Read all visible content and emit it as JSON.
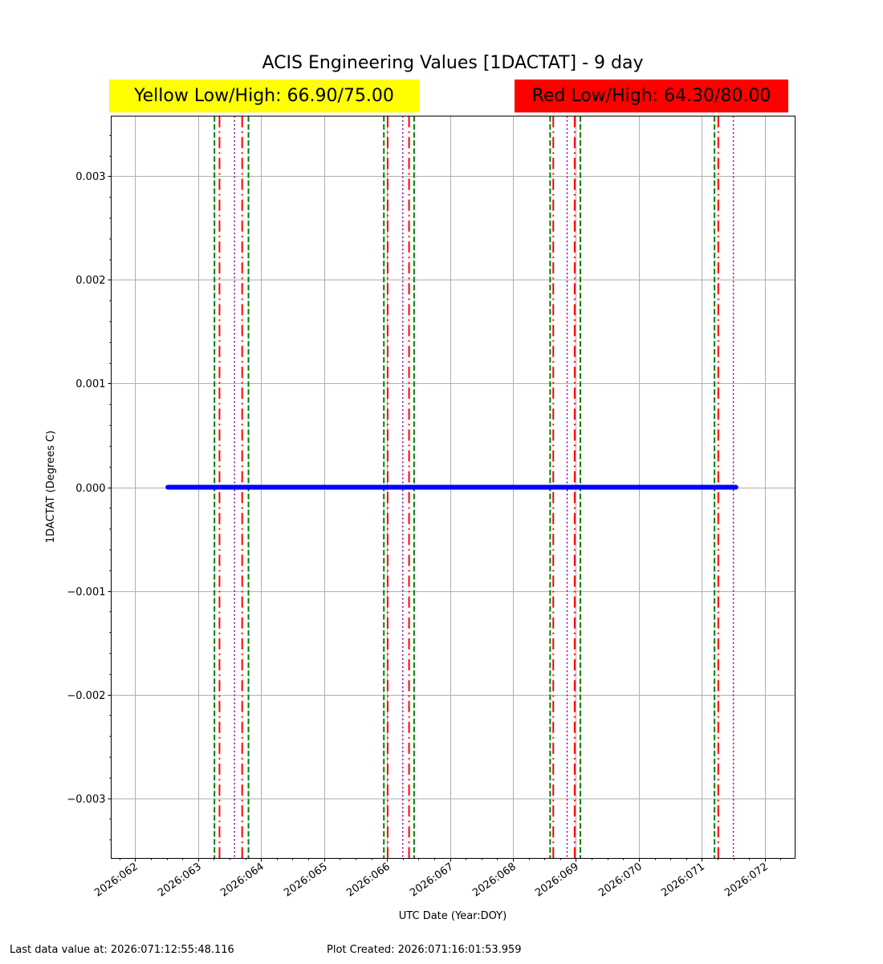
{
  "header": {
    "title": "ACIS Engineering Values [1DACTAT] - 9 day",
    "yellow_limits": "Yellow Low/High: 66.90/75.00",
    "red_limits": "Red Low/High: 64.30/80.00"
  },
  "footer": {
    "last_data": "Last data value at: 2026:071:12:55:48.116",
    "plot_created": "Plot Created: 2026:071:16:01:53.959"
  },
  "colors": {
    "series": "#0000ff",
    "green_lines": "#008000",
    "red_lines": "#ff0000",
    "purple_lines": "#800080",
    "yellow_badge": "#ffff00",
    "red_badge": "#ff0000",
    "grid": "#b0b0b0"
  },
  "chart_data": {
    "type": "line",
    "title": "ACIS Engineering Values [1DACTAT] - 9 day",
    "xlabel": "UTC Date (Year:DOY)",
    "ylabel": "1DACTAT (Degrees C)",
    "x_tick_labels": [
      "2026:062",
      "2026:063",
      "2026:064",
      "2026:065",
      "2026:066",
      "2026:067",
      "2026:068",
      "2026:069",
      "2026:070",
      "2026:071",
      "2026:072"
    ],
    "x_range": [
      "2026:061.62",
      "2026:072.48"
    ],
    "ylim": [
      -0.00358,
      0.00358
    ],
    "y_ticks": [
      -0.003,
      -0.002,
      -0.001,
      0.0,
      0.001,
      0.002,
      0.003
    ],
    "y_tick_labels": [
      "−0.003",
      "−0.002",
      "−0.001",
      "0.000",
      "0.001",
      "0.002",
      "0.003"
    ],
    "grid": true,
    "series": [
      {
        "x": [
          "2026:062.52",
          "2026:071.54"
        ],
        "y": [
          0.0,
          0.0
        ]
      }
    ],
    "vertical_lines": {
      "green_dashed": [
        "2026:063.26",
        "2026:063.80",
        "2026:065.95",
        "2026:066.43",
        "2026:068.59",
        "2026:069.07",
        "2026:071.20"
      ],
      "red_dashdot": [
        "2026:063.34",
        "2026:063.70",
        "2026:066.01",
        "2026:066.35",
        "2026:068.64",
        "2026:068.98",
        "2026:071.26"
      ],
      "purple_dotted": [
        "2026:063.58",
        "2026:066.25",
        "2026:068.86",
        "2026:071.50"
      ]
    }
  }
}
